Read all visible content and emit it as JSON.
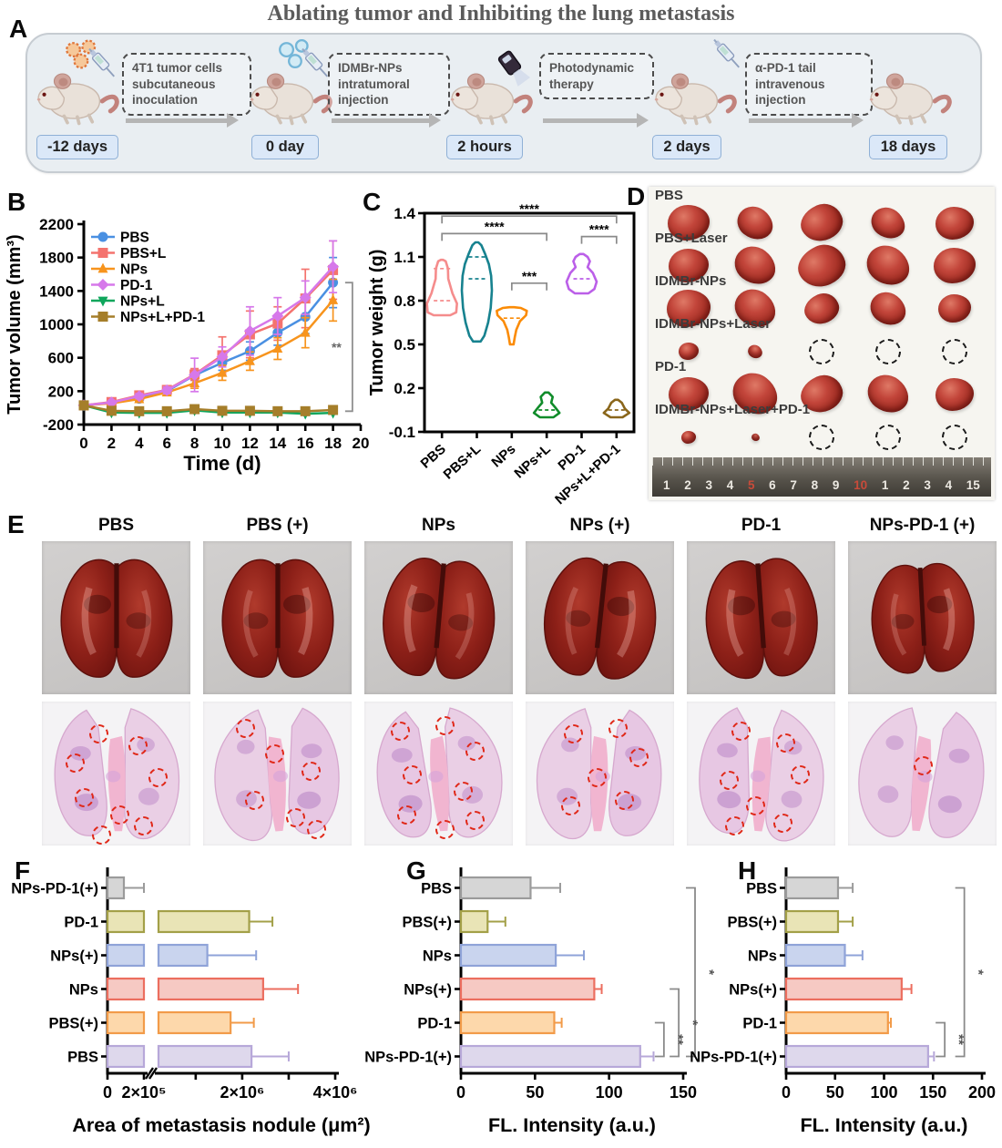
{
  "figure_title": "Ablating tumor and Inhibiting the lung metastasis",
  "panelA": {
    "label": "A",
    "steps": [
      {
        "text": "4T1 tumor cells subcutaneous inoculation"
      },
      {
        "text": "IDMBr-NPs intratumoral injection"
      },
      {
        "text": "Photodynamic therapy"
      },
      {
        "text": "α-PD-1 tail intravenous injection"
      }
    ],
    "timepoints": [
      "-12 days",
      "0 day",
      "2 hours",
      "2 days",
      "18 days"
    ]
  },
  "panelD": {
    "label": "D",
    "rows": [
      {
        "label": "PBS",
        "items": [
          {
            "type": "tumor",
            "size": 46
          },
          {
            "type": "tumor",
            "size": 40
          },
          {
            "type": "tumor",
            "size": 46
          },
          {
            "type": "tumor",
            "size": 38
          },
          {
            "type": "tumor",
            "size": 42
          }
        ]
      },
      {
        "label": "PBS+Laser",
        "items": [
          {
            "type": "tumor",
            "size": 44
          },
          {
            "type": "tumor",
            "size": 46
          },
          {
            "type": "tumor",
            "size": 52
          },
          {
            "type": "tumor",
            "size": 48
          },
          {
            "type": "tumor",
            "size": 46
          }
        ]
      },
      {
        "label": "IDMBr-NPs",
        "items": [
          {
            "type": "tumor",
            "size": 48
          },
          {
            "type": "tumor",
            "size": 46
          },
          {
            "type": "tumor",
            "size": 38
          },
          {
            "type": "tumor",
            "size": 40
          },
          {
            "type": "tumor",
            "size": 36
          }
        ]
      },
      {
        "label": "IDMBr-NPs+Laser",
        "items": [
          {
            "type": "tumor",
            "size": 22
          },
          {
            "type": "tumor",
            "size": 16
          },
          {
            "type": "circle"
          },
          {
            "type": "circle"
          },
          {
            "type": "circle"
          }
        ]
      },
      {
        "label": "PD-1",
        "items": [
          {
            "type": "tumor",
            "size": 44
          },
          {
            "type": "tumor",
            "size": 50
          },
          {
            "type": "tumor",
            "size": 46
          },
          {
            "type": "tumor",
            "size": 46
          },
          {
            "type": "tumor",
            "size": 42
          }
        ]
      },
      {
        "label": "IDMBr-NPs+Laser+PD-1",
        "items": [
          {
            "type": "tumor",
            "size": 16
          },
          {
            "type": "tumor",
            "size": 9
          },
          {
            "type": "circle"
          },
          {
            "type": "circle"
          },
          {
            "type": "circle"
          }
        ]
      }
    ],
    "ruler_numbers": [
      "1",
      "2",
      "3",
      "4",
      "5",
      "6",
      "7",
      "8",
      "9",
      "10",
      "1",
      "2",
      "3",
      "4",
      "15"
    ],
    "ruler_red_numbers": [
      "5",
      "10"
    ]
  },
  "panelE": {
    "label": "E",
    "columns": [
      {
        "label": "PBS",
        "circles": [
          [
            32,
            16
          ],
          [
            16,
            36
          ],
          [
            58,
            24
          ],
          [
            72,
            46
          ],
          [
            22,
            60
          ],
          [
            46,
            72
          ],
          [
            62,
            80
          ],
          [
            34,
            86
          ]
        ]
      },
      {
        "label": "PBS (+)",
        "circles": [
          [
            22,
            12
          ],
          [
            42,
            30
          ],
          [
            66,
            42
          ],
          [
            28,
            62
          ],
          [
            56,
            74
          ],
          [
            70,
            82
          ]
        ]
      },
      {
        "label": "NPs",
        "circles": [
          [
            18,
            14
          ],
          [
            48,
            10
          ],
          [
            68,
            28
          ],
          [
            26,
            44
          ],
          [
            60,
            56
          ],
          [
            22,
            72
          ],
          [
            48,
            82
          ],
          [
            68,
            76
          ]
        ]
      },
      {
        "label": "NPs (+)",
        "circles": [
          [
            26,
            16
          ],
          [
            56,
            12
          ],
          [
            70,
            32
          ],
          [
            42,
            46
          ],
          [
            24,
            66
          ],
          [
            60,
            62
          ]
        ]
      },
      {
        "label": "PD-1",
        "circles": [
          [
            30,
            14
          ],
          [
            60,
            22
          ],
          [
            70,
            44
          ],
          [
            22,
            48
          ],
          [
            40,
            66
          ],
          [
            26,
            80
          ],
          [
            58,
            78
          ]
        ]
      },
      {
        "label": "NPs-PD-1 (+)",
        "circles": [
          [
            44,
            38
          ]
        ]
      }
    ]
  },
  "chart_data": [
    {
      "id": "B",
      "panel_label": "B",
      "type": "line",
      "xlabel": "Time (d)",
      "ylabel": "Tumor volume (mm³)",
      "xlim": [
        0,
        20
      ],
      "ylim": [
        -200,
        2200
      ],
      "xticks": [
        0,
        2,
        4,
        6,
        8,
        10,
        12,
        14,
        16,
        18,
        20
      ],
      "yticks": [
        -200,
        200,
        600,
        1000,
        1400,
        1800,
        2200
      ],
      "legend_position": "top-left",
      "grid": false,
      "x": [
        0,
        2,
        4,
        6,
        8,
        10,
        12,
        14,
        16,
        18
      ],
      "series": [
        {
          "name": "PBS",
          "color": "#4a90e2",
          "marker": "circle",
          "values": [
            30,
            60,
            110,
            200,
            390,
            540,
            680,
            900,
            1090,
            1500
          ],
          "err": [
            10,
            15,
            25,
            40,
            60,
            90,
            110,
            150,
            200,
            300
          ]
        },
        {
          "name": "PBS+L",
          "color": "#f4736e",
          "marker": "square",
          "values": [
            30,
            70,
            150,
            215,
            400,
            630,
            880,
            1010,
            1310,
            1650
          ],
          "err": [
            10,
            20,
            35,
            45,
            70,
            220,
            280,
            200,
            350,
            350
          ]
        },
        {
          "name": "NPs",
          "color": "#f7941d",
          "marker": "triangle-up",
          "values": [
            30,
            55,
            105,
            185,
            295,
            420,
            560,
            710,
            900,
            1290
          ],
          "err": [
            10,
            15,
            25,
            35,
            60,
            90,
            110,
            130,
            180,
            250
          ]
        },
        {
          "name": "PD-1",
          "color": "#d678ea",
          "marker": "diamond",
          "values": [
            30,
            65,
            140,
            210,
            395,
            610,
            920,
            1100,
            1320,
            1690
          ],
          "err": [
            10,
            18,
            30,
            40,
            200,
            120,
            290,
            220,
            200,
            310
          ]
        },
        {
          "name": "NPs+L",
          "color": "#0fa65c",
          "marker": "triangle-down",
          "values": [
            30,
            -55,
            -60,
            -60,
            -30,
            -55,
            -55,
            -55,
            -70,
            -60
          ],
          "err": [
            8,
            10,
            10,
            10,
            12,
            10,
            10,
            10,
            10,
            15
          ]
        },
        {
          "name": "NPs+L+PD-1",
          "color": "#a57e2a",
          "marker": "square",
          "values": [
            30,
            -35,
            -40,
            -40,
            -15,
            -35,
            -35,
            -40,
            -40,
            -25
          ],
          "err": [
            8,
            10,
            10,
            10,
            12,
            10,
            10,
            10,
            10,
            15
          ]
        }
      ],
      "significance": {
        "label": "**",
        "x": 19.4,
        "from": 1500,
        "to": -40
      }
    },
    {
      "id": "C",
      "panel_label": "C",
      "type": "violin",
      "ylabel": "Tumor weight (g)",
      "ylim": [
        -0.1,
        1.4
      ],
      "yticks": [
        -0.1,
        0.2,
        0.5,
        0.8,
        1.1,
        1.4
      ],
      "categories": [
        "PBS",
        "PBS+L",
        "NPs",
        "NPs+L",
        "PD-1",
        "NPs+L+PD-1"
      ],
      "violins": [
        {
          "name": "PBS",
          "color": "#f58c8c",
          "min": 0.7,
          "max": 1.08,
          "profile": [
            [
              0.7,
              0.55
            ],
            [
              0.72,
              0.95
            ],
            [
              0.78,
              1.0
            ],
            [
              0.85,
              0.7
            ],
            [
              0.95,
              0.42
            ],
            [
              1.02,
              0.4
            ],
            [
              1.07,
              0.25
            ],
            [
              1.08,
              0.08
            ]
          ],
          "lines": [
            0.8,
            1.02
          ]
        },
        {
          "name": "PBS+L",
          "color": "#17828f",
          "min": 0.52,
          "max": 1.2,
          "profile": [
            [
              0.52,
              0.25
            ],
            [
              0.56,
              0.5
            ],
            [
              0.65,
              0.75
            ],
            [
              0.75,
              0.92
            ],
            [
              0.87,
              1.0
            ],
            [
              0.97,
              0.95
            ],
            [
              1.05,
              0.8
            ],
            [
              1.12,
              0.55
            ],
            [
              1.18,
              0.3
            ],
            [
              1.2,
              0.1
            ]
          ],
          "lines": [
            0.95,
            1.1
          ]
        },
        {
          "name": "NPs",
          "color": "#fb8b06",
          "min": 0.5,
          "max": 0.755,
          "profile": [
            [
              0.5,
              0.12
            ],
            [
              0.55,
              0.2
            ],
            [
              0.6,
              0.3
            ],
            [
              0.66,
              0.55
            ],
            [
              0.7,
              0.95
            ],
            [
              0.73,
              1.0
            ],
            [
              0.75,
              0.6
            ],
            [
              0.755,
              0.15
            ]
          ],
          "lines": [
            0.68
          ]
        },
        {
          "name": "NPs+L",
          "color": "#108c2a",
          "min": 0.0,
          "max": 0.17,
          "profile": [
            [
              0.0,
              0.45
            ],
            [
              0.03,
              0.85
            ],
            [
              0.07,
              0.55
            ],
            [
              0.1,
              0.3
            ],
            [
              0.14,
              0.4
            ],
            [
              0.17,
              0.12
            ]
          ],
          "lines": [
            0.05
          ]
        },
        {
          "name": "PD-1",
          "color": "#bb5fe8",
          "min": 0.85,
          "max": 1.12,
          "profile": [
            [
              0.85,
              0.45
            ],
            [
              0.88,
              0.85
            ],
            [
              0.93,
              1.0
            ],
            [
              0.99,
              0.75
            ],
            [
              1.03,
              0.4
            ],
            [
              1.07,
              0.55
            ],
            [
              1.1,
              0.4
            ],
            [
              1.12,
              0.12
            ]
          ],
          "lines": [
            0.95
          ]
        },
        {
          "name": "NPs+L+PD-1",
          "color": "#8a661b",
          "min": 0.0,
          "max": 0.12,
          "profile": [
            [
              0.0,
              0.4
            ],
            [
              0.03,
              0.85
            ],
            [
              0.06,
              0.55
            ],
            [
              0.08,
              0.45
            ],
            [
              0.1,
              0.35
            ],
            [
              0.12,
              0.1
            ]
          ],
          "lines": [
            0.05
          ]
        }
      ],
      "significance": [
        {
          "a": 0,
          "b": 5,
          "y": 1.38,
          "label": "****"
        },
        {
          "a": 0,
          "b": 3,
          "y": 1.26,
          "label": "****"
        },
        {
          "a": 2,
          "b": 3,
          "y": 0.92,
          "label": "***"
        },
        {
          "a": 4,
          "b": 5,
          "y": 1.24,
          "label": "****"
        }
      ]
    },
    {
      "id": "F",
      "panel_label": "F",
      "type": "hbar-broken",
      "xlabel": "Area of metastasis nodule (μm²)",
      "categories": [
        "NPs-PD-1(+)",
        "PD-1",
        "NPs(+)",
        "NPs",
        "PBS(+)",
        "PBS"
      ],
      "values": [
        90000,
        2150000,
        1250000,
        2450000,
        1750000,
        2200000
      ],
      "errors": [
        200000,
        2650000,
        2300000,
        3200000,
        2250000,
        3000000
      ],
      "fills": [
        "#d6d6d6",
        "#e9e4b6",
        "#c9d4ee",
        "#f6c9c3",
        "#fdd8ab",
        "#ded8ec"
      ],
      "strokes": [
        "#9b9b9b",
        "#a3a048",
        "#8fa3d8",
        "#ec6e5f",
        "#f29b49",
        "#b7a8d9"
      ],
      "break_value": 200000,
      "xmax": 4000000,
      "xticks": [
        {
          "v": 0,
          "label": "0"
        },
        {
          "v": 200000,
          "label": "2×10⁵"
        },
        {
          "v": 2000000,
          "label": "2×10⁶"
        },
        {
          "v": 4000000,
          "label": "4×10⁶"
        }
      ],
      "significance": []
    },
    {
      "id": "G",
      "panel_label": "G",
      "type": "hbar",
      "xlabel": "FL. Intensity (a.u.)",
      "xmax": 150,
      "categories": [
        "PBS",
        "PBS(+)",
        "NPs",
        "NPs(+)",
        "PD-1",
        "NPs-PD-1(+)"
      ],
      "values": [
        47,
        18,
        64,
        90,
        63,
        121
      ],
      "errors": [
        67,
        30,
        83,
        95,
        68,
        130
      ],
      "fills": [
        "#d6d6d6",
        "#e9e4b6",
        "#c9d4ee",
        "#f6c9c3",
        "#fdd8ab",
        "#ded8ec"
      ],
      "strokes": [
        "#9b9b9b",
        "#a3a048",
        "#8fa3d8",
        "#ec6e5f",
        "#f29b49",
        "#b7a8d9"
      ],
      "xticks": [
        0,
        50,
        100,
        150
      ],
      "significance": [
        {
          "a": 0,
          "b": 5,
          "x": 158,
          "label": "*"
        },
        {
          "a": 3,
          "b": 5,
          "x": 147,
          "label": "*"
        },
        {
          "a": 4,
          "b": 5,
          "x": 137,
          "label": "**"
        }
      ]
    },
    {
      "id": "H",
      "panel_label": "H",
      "type": "hbar",
      "xlabel": "FL. Intensity (a.u.)",
      "xmax": 200,
      "categories": [
        "PBS",
        "PBS(+)",
        "NPs",
        "NPs(+)",
        "PD-1",
        "NPs-PD-1(+)"
      ],
      "values": [
        53,
        53,
        60,
        118,
        104,
        145
      ],
      "errors": [
        68,
        68,
        78,
        128,
        107,
        151
      ],
      "fills": [
        "#d6d6d6",
        "#e9e4b6",
        "#c9d4ee",
        "#f6c9c3",
        "#fdd8ab",
        "#ded8ec"
      ],
      "strokes": [
        "#9b9b9b",
        "#a3a048",
        "#8fa3d8",
        "#ec6e5f",
        "#f29b49",
        "#b7a8d9"
      ],
      "xticks": [
        0,
        50,
        100,
        150,
        200
      ],
      "significance": [
        {
          "a": 0,
          "b": 5,
          "x": 182,
          "label": "*"
        },
        {
          "a": 4,
          "b": 5,
          "x": 162,
          "label": "**"
        }
      ]
    }
  ]
}
